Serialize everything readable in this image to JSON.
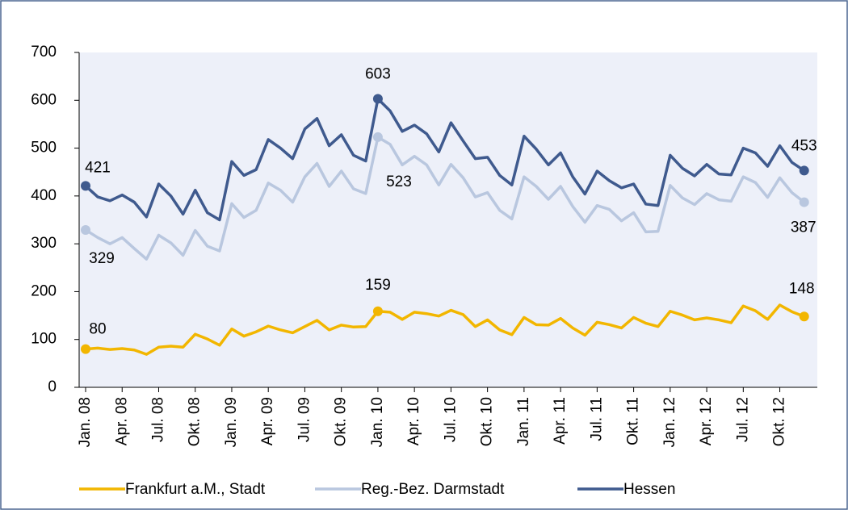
{
  "chart_data": {
    "type": "line",
    "categories": [
      "Jan. 08",
      null,
      null,
      "Apr. 08",
      null,
      null,
      "Jul. 08",
      null,
      null,
      "Okt. 08",
      null,
      null,
      "Jan. 09",
      null,
      null,
      "Apr. 09",
      null,
      null,
      "Jul. 09",
      null,
      null,
      "Okt. 09",
      null,
      null,
      "Jan. 10",
      null,
      null,
      "Apr. 10",
      null,
      null,
      "Jul. 10",
      null,
      null,
      "Okt. 10",
      null,
      null,
      "Jan. 11",
      null,
      null,
      "Apr. 11",
      null,
      null,
      "Jul. 11",
      null,
      null,
      "Okt. 11",
      null,
      null,
      "Jan. 12",
      null,
      null,
      "Apr. 12",
      null,
      null,
      "Jul. 12",
      null,
      null,
      "Okt. 12",
      null,
      null
    ],
    "series": [
      {
        "name": "Frankfurt a.M., Stadt",
        "color": "#f2b600",
        "values": [
          80,
          82,
          79,
          81,
          78,
          69,
          84,
          86,
          84,
          111,
          101,
          88,
          122,
          107,
          116,
          128,
          120,
          114,
          127,
          140,
          120,
          130,
          126,
          127,
          159,
          157,
          142,
          157,
          154,
          149,
          161,
          152,
          127,
          141,
          120,
          110,
          146,
          131,
          130,
          144,
          124,
          109,
          136,
          131,
          124,
          146,
          134,
          127,
          159,
          151,
          141,
          145,
          141,
          135,
          170,
          160,
          142,
          172,
          158,
          148
        ]
      },
      {
        "name": "Reg.-Bez. Darmstadt",
        "color": "#b9c7df",
        "values": [
          329,
          313,
          300,
          313,
          290,
          268,
          318,
          302,
          276,
          328,
          295,
          285,
          384,
          355,
          370,
          427,
          412,
          387,
          440,
          468,
          420,
          452,
          415,
          405,
          523,
          508,
          465,
          483,
          465,
          423,
          466,
          438,
          398,
          407,
          370,
          352,
          440,
          420,
          393,
          420,
          378,
          345,
          380,
          372,
          348,
          365,
          325,
          326,
          422,
          396,
          382,
          405,
          392,
          389,
          440,
          428,
          397,
          438,
          407,
          387
        ]
      },
      {
        "name": "Hessen",
        "color": "#3f5a8e",
        "values": [
          421,
          398,
          390,
          402,
          387,
          356,
          425,
          400,
          362,
          412,
          365,
          350,
          472,
          443,
          455,
          518,
          500,
          478,
          540,
          562,
          505,
          528,
          485,
          473,
          603,
          578,
          535,
          548,
          530,
          492,
          553,
          515,
          478,
          481,
          443,
          423,
          525,
          498,
          465,
          490,
          440,
          404,
          452,
          432,
          417,
          425,
          383,
          380,
          485,
          458,
          442,
          466,
          446,
          444,
          500,
          490,
          462,
          505,
          470,
          453
        ]
      }
    ],
    "ylim": [
      0,
      700
    ],
    "yticks": [
      0,
      100,
      200,
      300,
      400,
      500,
      600,
      700
    ],
    "grid": false,
    "legend": "bottom"
  }
}
